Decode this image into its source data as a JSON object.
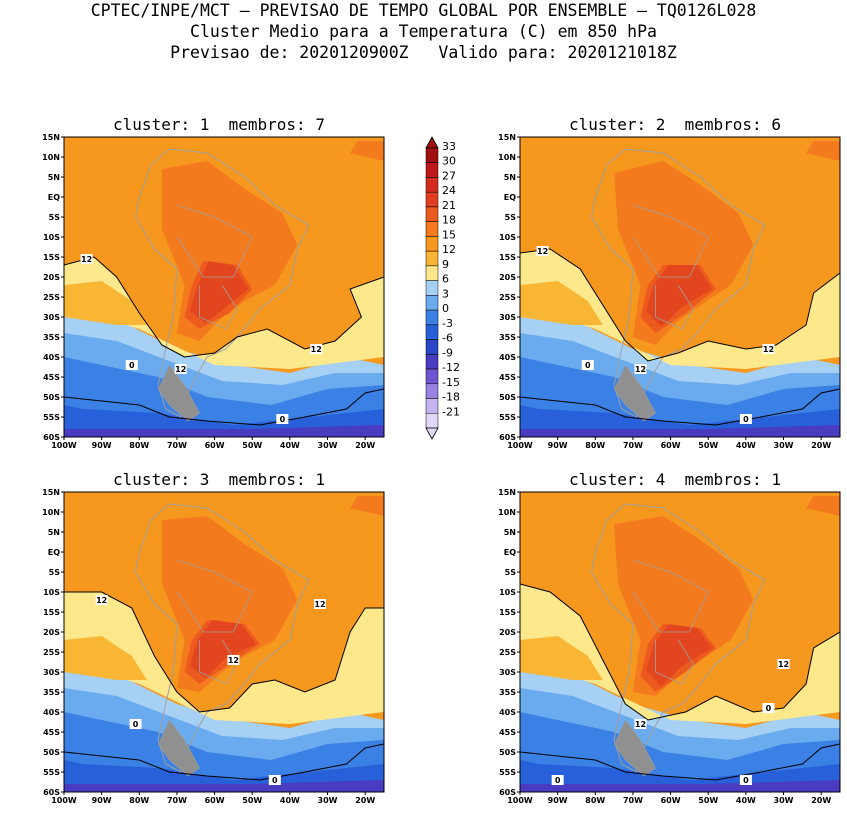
{
  "header": {
    "line1": "CPTEC/INPE/MCT — PREVISAO DE TEMPO GLOBAL POR ENSEMBLE — TQ0126L028",
    "line2": "Cluster Medio para a Temperatura (C) em 850 hPa",
    "line3": "Previsao de: 2020120900Z   Valido para: 2020121018Z"
  },
  "panels": [
    {
      "title": "cluster: 1  membros: 7",
      "contour_labels": [
        "12",
        "12",
        "12",
        "0",
        "0"
      ]
    },
    {
      "title": "cluster: 2  membros: 6",
      "contour_labels": [
        "12",
        "12",
        "12",
        "0",
        "0"
      ]
    },
    {
      "title": "cluster: 3  membros: 1",
      "contour_labels": [
        "12",
        "12",
        "12",
        "0",
        "0"
      ]
    },
    {
      "title": "cluster: 4  membros: 1",
      "contour_labels": [
        "12",
        "12",
        "0",
        "0",
        "0"
      ]
    }
  ],
  "axes": {
    "lat_ticks": [
      "15N",
      "10N",
      "5N",
      "EQ",
      "5S",
      "10S",
      "15S",
      "20S",
      "25S",
      "30S",
      "35S",
      "40S",
      "45S",
      "50S",
      "55S",
      "60S"
    ],
    "lon_ticks": [
      "100W",
      "90W",
      "80W",
      "70W",
      "60W",
      "50W",
      "40W",
      "30W",
      "20W"
    ]
  },
  "colorbar": {
    "levels": [
      "33",
      "30",
      "27",
      "24",
      "21",
      "18",
      "15",
      "12",
      "9",
      "6",
      "3",
      "0",
      "-3",
      "-6",
      "-9",
      "-12",
      "-15",
      "-18",
      "-21"
    ],
    "colors": [
      "#a01010",
      "#c01818",
      "#d42a20",
      "#e03c1e",
      "#ec5a1e",
      "#f47a1e",
      "#f6971e",
      "#f9b534",
      "#fde88c",
      "#a6d0f4",
      "#6aaaee",
      "#3b80e4",
      "#2760d8",
      "#2a46c4",
      "#4a3cc0",
      "#6e54d0",
      "#9a82e2",
      "#c4b4f0",
      "#e0d8f8"
    ]
  },
  "palette": {
    "orange_dark": "#f47a1e",
    "orange": "#f6971e",
    "orange_light": "#f9b534",
    "yellow": "#fde88c",
    "blue_light": "#a6d0f4",
    "blue": "#6aaaee",
    "blue_mid": "#3b80e4",
    "blue_dark": "#2760d8",
    "purple": "#4a3cc0",
    "red": "#ec5a1e",
    "red_dark": "#e03c1e",
    "border": "#a0a0a0",
    "contour": "#000000"
  }
}
